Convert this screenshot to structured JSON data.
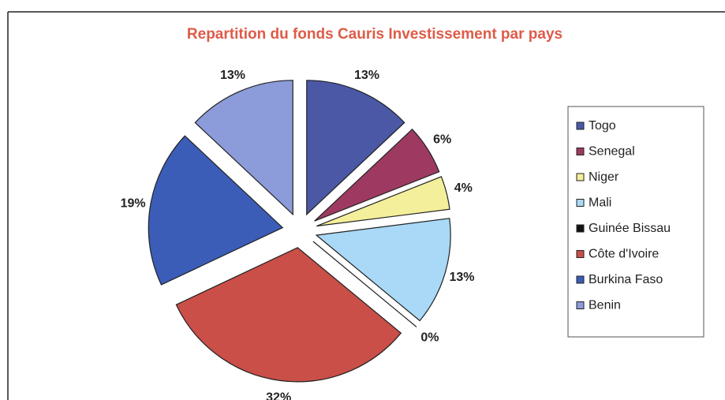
{
  "chart_data": {
    "type": "pie",
    "title": "Repartition du fonds Cauris Investissement par pays",
    "categories": [
      "Togo",
      "Senegal",
      "Niger",
      "Mali",
      "Guinée Bissau",
      "Côte d'Ivoire",
      "Burkina Faso",
      "Benin"
    ],
    "values": [
      13,
      6,
      4,
      13,
      0,
      32,
      19,
      13
    ],
    "value_labels": [
      "13%",
      "6%",
      "4%",
      "13%",
      "0%",
      "32%",
      "19%",
      "13%"
    ],
    "colors": [
      "#4a58a6",
      "#9e3a62",
      "#f4ef9a",
      "#a9d9f6",
      "#111111",
      "#c94f48",
      "#3b5db8",
      "#8c9bd9"
    ],
    "legend": "right"
  }
}
